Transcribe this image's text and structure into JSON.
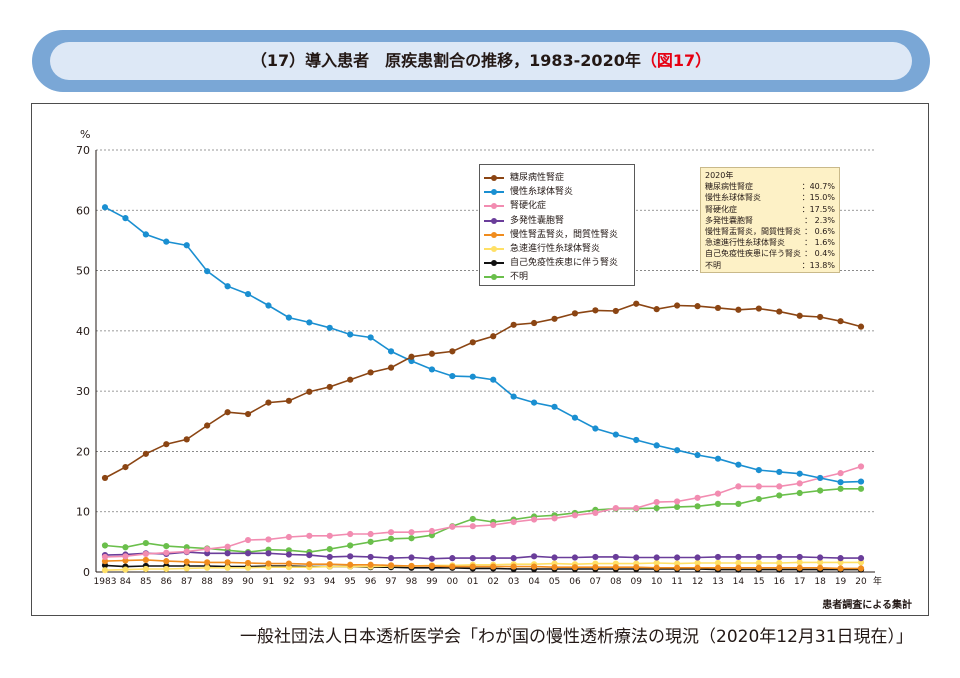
{
  "banner": {
    "title": "（17）導入患者　原疾患割合の推移，1983-2020年",
    "fig_label": "（図17）"
  },
  "source_note": "一般社団法人日本透析医学会「わが国の慢性透析療法の現況（2020年12月31日現在）」",
  "chart_data": {
    "type": "line",
    "title": "導入患者　原疾患割合の推移，1983-2020年",
    "ylabel": "%",
    "xlabel": "年",
    "ylim": [
      0,
      70
    ],
    "yticks": [
      0,
      10,
      20,
      30,
      40,
      50,
      60,
      70
    ],
    "grid": true,
    "note": "患者調査による集計",
    "x": [
      1983,
      1984,
      1985,
      1986,
      1987,
      1988,
      1989,
      1990,
      1991,
      1992,
      1993,
      1994,
      1995,
      1996,
      1997,
      1998,
      1999,
      2000,
      2001,
      2002,
      2003,
      2004,
      2005,
      2006,
      2007,
      2008,
      2009,
      2010,
      2011,
      2012,
      2013,
      2014,
      2015,
      2016,
      2017,
      2018,
      2019,
      2020
    ],
    "x_tick_labels": [
      "1983",
      "84",
      "85",
      "86",
      "87",
      "88",
      "89",
      "90",
      "91",
      "92",
      "93",
      "94",
      "95",
      "96",
      "97",
      "98",
      "99",
      "00",
      "01",
      "02",
      "03",
      "04",
      "05",
      "06",
      "07",
      "08",
      "09",
      "10",
      "11",
      "12",
      "13",
      "14",
      "15",
      "16",
      "17",
      "18",
      "19",
      "20"
    ],
    "series": [
      {
        "name": "糖尿病性腎症",
        "color": "#8b4513",
        "values": [
          15.6,
          17.4,
          19.6,
          21.2,
          22.0,
          24.3,
          26.5,
          26.2,
          28.1,
          28.4,
          29.9,
          30.7,
          31.9,
          33.1,
          33.9,
          35.7,
          36.2,
          36.6,
          38.1,
          39.1,
          41.0,
          41.3,
          42.0,
          42.9,
          43.4,
          43.3,
          44.5,
          43.6,
          44.2,
          44.1,
          43.8,
          43.5,
          43.7,
          43.2,
          42.5,
          42.3,
          41.6,
          40.7
        ]
      },
      {
        "name": "慢性糸球体腎炎",
        "color": "#1a8fd1",
        "values": [
          60.5,
          58.7,
          56.0,
          54.8,
          54.2,
          49.9,
          47.4,
          46.1,
          44.2,
          42.2,
          41.4,
          40.5,
          39.4,
          38.9,
          36.6,
          35.0,
          33.6,
          32.5,
          32.4,
          31.9,
          29.1,
          28.1,
          27.4,
          25.6,
          23.8,
          22.8,
          21.9,
          21.0,
          20.2,
          19.4,
          18.8,
          17.8,
          16.9,
          16.6,
          16.3,
          15.6,
          14.9,
          15.0
        ]
      },
      {
        "name": "腎硬化症",
        "color": "#f28cb1",
        "values": [
          2.5,
          2.6,
          3.0,
          3.2,
          3.4,
          3.8,
          4.2,
          5.3,
          5.4,
          5.8,
          6.0,
          6.0,
          6.3,
          6.3,
          6.6,
          6.6,
          6.8,
          7.5,
          7.6,
          7.8,
          8.3,
          8.7,
          8.9,
          9.4,
          9.8,
          10.6,
          10.6,
          11.6,
          11.7,
          12.3,
          13.0,
          14.2,
          14.2,
          14.2,
          14.7,
          15.6,
          16.4,
          17.5
        ]
      },
      {
        "name": "多発性嚢胞腎",
        "color": "#6a3d9a",
        "values": [
          2.8,
          2.9,
          3.1,
          3.0,
          3.3,
          3.1,
          3.1,
          3.1,
          3.1,
          2.9,
          2.8,
          2.5,
          2.6,
          2.5,
          2.3,
          2.4,
          2.2,
          2.3,
          2.3,
          2.3,
          2.3,
          2.6,
          2.4,
          2.4,
          2.5,
          2.5,
          2.4,
          2.4,
          2.4,
          2.4,
          2.5,
          2.5,
          2.5,
          2.5,
          2.5,
          2.4,
          2.3,
          2.3
        ]
      },
      {
        "name": "慢性腎盂腎炎，間質性腎炎",
        "color": "#f08c1e",
        "values": [
          1.8,
          1.9,
          2.0,
          1.8,
          1.7,
          1.6,
          1.6,
          1.5,
          1.4,
          1.4,
          1.3,
          1.3,
          1.2,
          1.2,
          1.1,
          1.0,
          1.0,
          0.9,
          0.9,
          0.9,
          0.9,
          0.9,
          0.8,
          0.8,
          0.8,
          0.8,
          0.8,
          0.7,
          0.7,
          0.7,
          0.7,
          0.7,
          0.7,
          0.7,
          0.7,
          0.7,
          0.6,
          0.6
        ]
      },
      {
        "name": "急速進行性糸球体腎炎",
        "color": "#ffe066",
        "values": [
          0.3,
          0.4,
          0.5,
          0.5,
          0.6,
          0.7,
          0.7,
          0.7,
          0.8,
          0.8,
          0.8,
          0.9,
          0.9,
          0.9,
          1.0,
          1.0,
          1.1,
          1.1,
          1.2,
          1.2,
          1.3,
          1.3,
          1.4,
          1.3,
          1.4,
          1.4,
          1.4,
          1.5,
          1.4,
          1.5,
          1.5,
          1.5,
          1.5,
          1.5,
          1.6,
          1.6,
          1.6,
          1.6
        ]
      },
      {
        "name": "自己免疫性疾患に伴う腎炎",
        "color": "#111111",
        "values": [
          1.1,
          0.9,
          1.0,
          1.0,
          1.0,
          1.0,
          0.9,
          0.9,
          1.0,
          1.0,
          0.9,
          0.9,
          0.9,
          0.8,
          0.8,
          0.7,
          0.7,
          0.7,
          0.6,
          0.6,
          0.5,
          0.5,
          0.5,
          0.5,
          0.5,
          0.5,
          0.5,
          0.5,
          0.5,
          0.5,
          0.4,
          0.4,
          0.4,
          0.4,
          0.4,
          0.4,
          0.4,
          0.4
        ]
      },
      {
        "name": "不明",
        "color": "#6abf4b",
        "values": [
          4.4,
          4.1,
          4.8,
          4.3,
          4.1,
          3.9,
          3.6,
          3.3,
          3.7,
          3.6,
          3.3,
          3.8,
          4.4,
          5.0,
          5.5,
          5.6,
          6.1,
          7.6,
          8.8,
          8.3,
          8.7,
          9.2,
          9.4,
          9.8,
          10.3,
          10.5,
          10.5,
          10.6,
          10.8,
          10.9,
          11.3,
          11.3,
          12.1,
          12.7,
          13.1,
          13.5,
          13.8,
          13.8
        ]
      }
    ],
    "summary_2020": {
      "title": "2020年",
      "rows": [
        {
          "label": "糖尿病性腎症",
          "value": "：40.7%"
        },
        {
          "label": "慢性糸球体腎炎",
          "value": "：15.0%"
        },
        {
          "label": "腎硬化症",
          "value": "：17.5%"
        },
        {
          "label": "多発性嚢胞腎",
          "value": "：  2.3%"
        },
        {
          "label": "慢性腎盂腎炎，間質性腎炎",
          "value": "：  0.6%"
        },
        {
          "label": "急速進行性糸球体腎炎",
          "value": "：  1.6%"
        },
        {
          "label": "自己免疫性疾患に伴う腎炎",
          "value": "：  0.4%"
        },
        {
          "label": "不明",
          "value": "：13.8%"
        }
      ]
    }
  }
}
